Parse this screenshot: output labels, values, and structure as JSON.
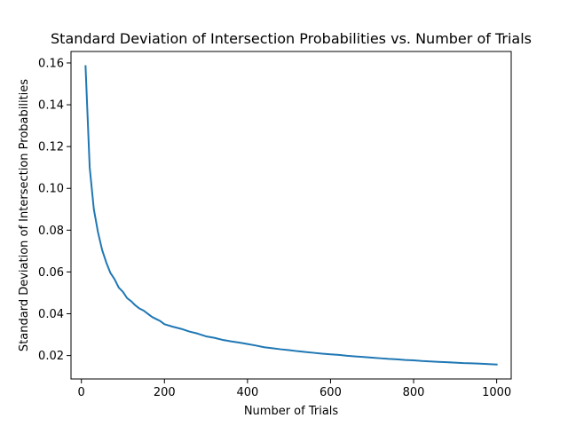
{
  "chart_data": {
    "type": "line",
    "title": "Standard Deviation of Intersection Probabilities vs. Number of Trials",
    "xlabel": "Number of Trials",
    "ylabel": "Standard Deviation of Intersection Probabilities",
    "xlim": [
      -25,
      1035
    ],
    "ylim": [
      0.0088,
      0.1655
    ],
    "grid": false,
    "line_color": "#1f77b4",
    "x_ticks": [
      0,
      200,
      400,
      600,
      800,
      1000
    ],
    "x_tick_labels": [
      "0",
      "200",
      "400",
      "600",
      "800",
      "1000"
    ],
    "y_ticks": [
      0.02,
      0.04,
      0.06,
      0.08,
      0.1,
      0.12,
      0.14,
      0.16
    ],
    "y_tick_labels": [
      "0.02",
      "0.04",
      "0.06",
      "0.08",
      "0.10",
      "0.12",
      "0.14",
      "0.16"
    ],
    "series": [
      {
        "x": [
          10,
          20,
          30,
          40,
          50,
          60,
          70,
          80,
          90,
          100,
          110,
          120,
          130,
          140,
          150,
          160,
          170,
          180,
          190,
          200,
          220,
          240,
          260,
          280,
          300,
          320,
          340,
          360,
          380,
          400,
          420,
          440,
          460,
          480,
          500,
          520,
          540,
          560,
          580,
          600,
          620,
          640,
          660,
          680,
          700,
          720,
          740,
          760,
          780,
          800,
          820,
          840,
          860,
          880,
          900,
          920,
          940,
          960,
          980,
          1000
        ],
        "y": [
          0.1585,
          0.11,
          0.09,
          0.079,
          0.0705,
          0.0645,
          0.0595,
          0.0565,
          0.0525,
          0.0505,
          0.0475,
          0.046,
          0.044,
          0.0425,
          0.0415,
          0.04,
          0.0385,
          0.0375,
          0.0365,
          0.035,
          0.0338,
          0.0328,
          0.0315,
          0.0305,
          0.0292,
          0.0285,
          0.0275,
          0.0268,
          0.0262,
          0.0255,
          0.0248,
          0.024,
          0.0235,
          0.023,
          0.0226,
          0.0221,
          0.0217,
          0.0213,
          0.0209,
          0.0206,
          0.0203,
          0.0199,
          0.0196,
          0.0193,
          0.019,
          0.0187,
          0.0184,
          0.0182,
          0.0179,
          0.0177,
          0.0174,
          0.0172,
          0.017,
          0.0168,
          0.0166,
          0.0164,
          0.0163,
          0.0161,
          0.0159,
          0.0157
        ]
      }
    ]
  }
}
